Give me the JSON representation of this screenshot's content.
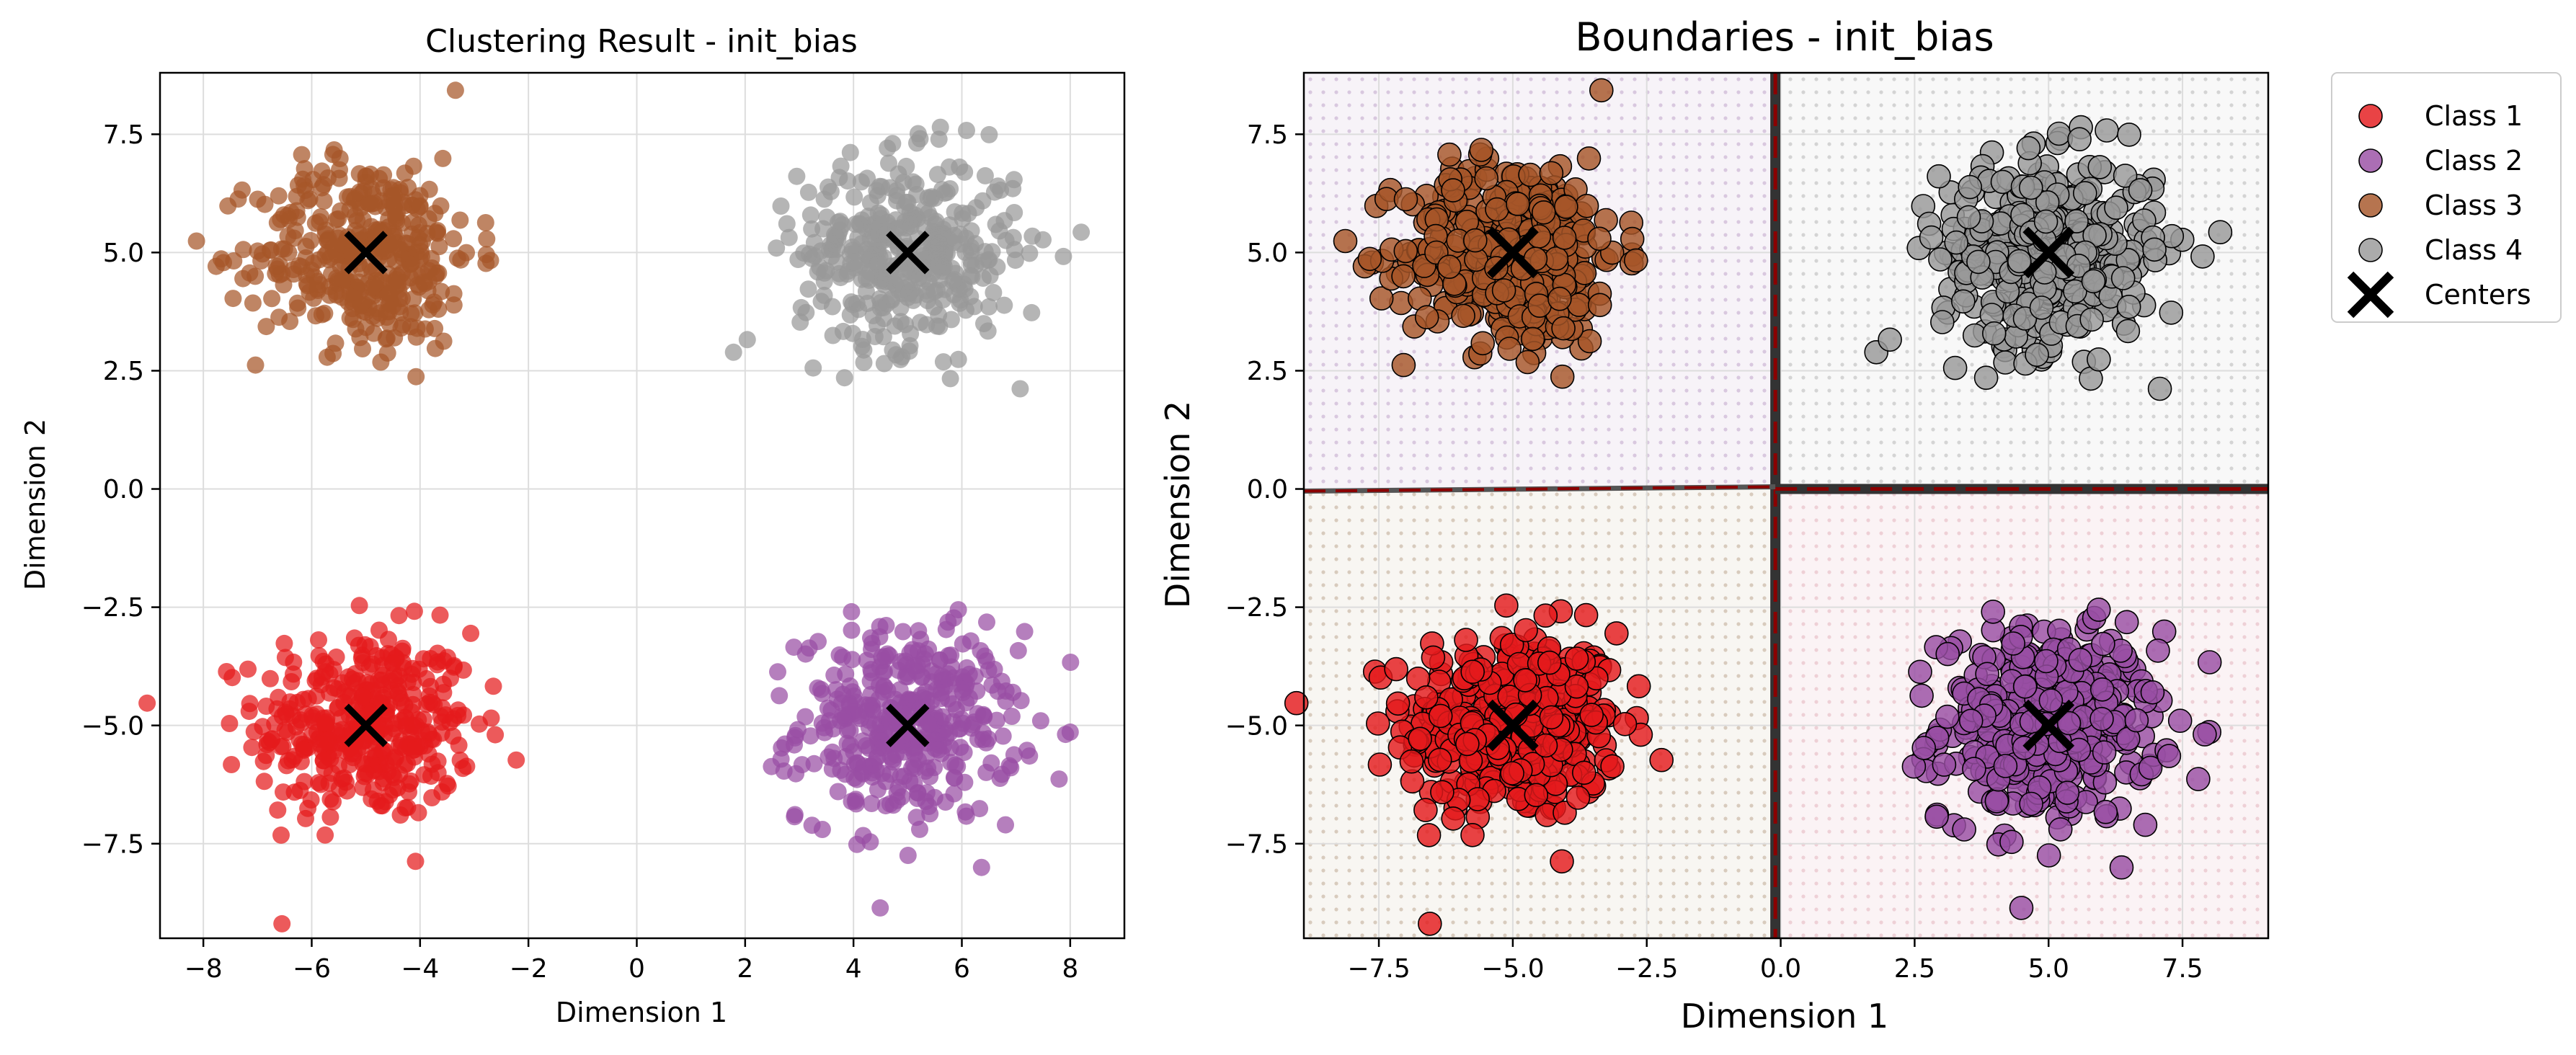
{
  "chart_data": [
    {
      "type": "scatter",
      "title": "Clustering Result - init_bias",
      "xlabel": "Dimension 1",
      "ylabel": "Dimension 2",
      "xlim": [
        -8.8,
        9.0
      ],
      "ylim": [
        -9.5,
        8.8
      ],
      "xticks": [
        -8,
        -6,
        -4,
        -2,
        0,
        2,
        4,
        6,
        8
      ],
      "xtick_labels": [
        "−8",
        "−6",
        "−4",
        "−2",
        "0",
        "2",
        "4",
        "6",
        "8"
      ],
      "yticks": [
        -7.5,
        -5.0,
        -2.5,
        0.0,
        2.5,
        5.0,
        7.5
      ],
      "ytick_labels": [
        "−7.5",
        "−5.0",
        "−2.5",
        "0.0",
        "2.5",
        "5.0",
        "7.5"
      ],
      "grid": true,
      "series": [
        {
          "color": "#e41a1c",
          "center": [
            -5.0,
            -5.0
          ],
          "spread": 1.0,
          "n": 400
        },
        {
          "color": "#984ea3",
          "center": [
            5.0,
            -5.0
          ],
          "spread": 1.0,
          "n": 400
        },
        {
          "color": "#a65628",
          "center": [
            -5.0,
            5.0
          ],
          "spread": 1.0,
          "n": 400
        },
        {
          "color": "#999999",
          "center": [
            5.0,
            5.0
          ],
          "spread": 1.0,
          "n": 400
        }
      ],
      "centers": [
        [
          -5.0,
          -5.0
        ],
        [
          5.0,
          -5.0
        ],
        [
          -5.0,
          5.0
        ],
        [
          5.0,
          5.0
        ]
      ]
    },
    {
      "type": "scatter",
      "title": "Boundaries - init_bias",
      "xlabel": "Dimension 1",
      "ylabel": "Dimension 2",
      "xlim": [
        -8.9,
        9.1
      ],
      "ylim": [
        -9.5,
        8.8
      ],
      "xticks": [
        -7.5,
        -5.0,
        -2.5,
        0.0,
        2.5,
        5.0,
        7.5
      ],
      "xtick_labels": [
        "−7.5",
        "−5.0",
        "−2.5",
        "0.0",
        "2.5",
        "5.0",
        "7.5"
      ],
      "yticks": [
        -7.5,
        -5.0,
        -2.5,
        0.0,
        2.5,
        5.0,
        7.5
      ],
      "ytick_labels": [
        "−7.5",
        "−5.0",
        "−2.5",
        "0.0",
        "2.5",
        "5.0",
        "7.5"
      ],
      "grid": true,
      "boundaries": {
        "x": -0.1,
        "y": 0.0
      },
      "legend": {
        "placement": "outside-top-right",
        "entries": [
          {
            "label": "Class 1",
            "color": "#e41a1c"
          },
          {
            "label": "Class 2",
            "color": "#984ea3"
          },
          {
            "label": "Class 3",
            "color": "#a65628"
          },
          {
            "label": "Class 4",
            "color": "#999999"
          },
          {
            "label": "Centers",
            "color": "#000000"
          }
        ]
      },
      "series": [
        {
          "name": "Class 1",
          "color": "#e41a1c",
          "center": [
            -5.0,
            -5.0
          ],
          "spread": 1.0,
          "n": 400
        },
        {
          "name": "Class 2",
          "color": "#984ea3",
          "center": [
            5.0,
            -5.0
          ],
          "spread": 1.0,
          "n": 400
        },
        {
          "name": "Class 3",
          "color": "#a65628",
          "center": [
            -5.0,
            5.0
          ],
          "spread": 1.0,
          "n": 400
        },
        {
          "name": "Class 4",
          "color": "#999999",
          "center": [
            5.0,
            5.0
          ],
          "spread": 1.0,
          "n": 400
        }
      ],
      "centers": [
        [
          -5.0,
          -5.0
        ],
        [
          5.0,
          -5.0
        ],
        [
          -5.0,
          5.0
        ],
        [
          5.0,
          5.0
        ]
      ]
    }
  ]
}
